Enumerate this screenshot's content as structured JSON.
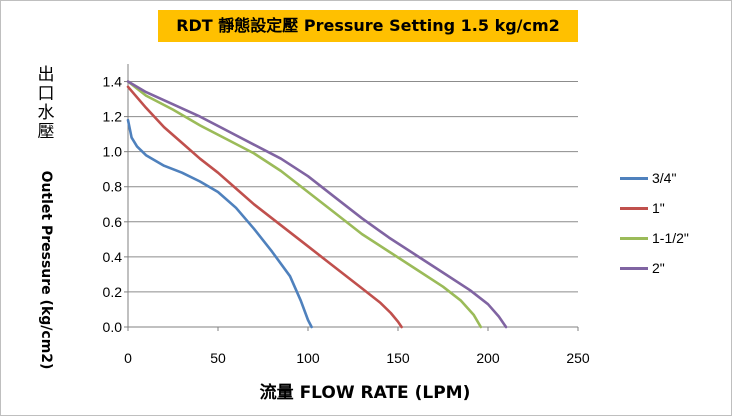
{
  "chart_data": {
    "type": "line",
    "title": "RDT  靜態設定壓  Pressure Setting 1.5 kg/cm2",
    "xlabel": "流量 FLOW RATE (LPM)",
    "ylabel_cn": "出口水壓",
    "ylabel_en": "Outlet  Pressure  (kg/cm2)",
    "xlim": [
      0,
      250
    ],
    "ylim": [
      0,
      1.5
    ],
    "xticks": [
      "0",
      "50",
      "100",
      "150",
      "200",
      "250"
    ],
    "yticks": [
      "0.0",
      "0.2",
      "0.4",
      "0.6",
      "0.8",
      "1.0",
      "1.2",
      "1.4"
    ],
    "grid": "horizontal",
    "legend_position": "right",
    "series": [
      {
        "name": "3/4\"",
        "color": "#4f81bd",
        "points": [
          [
            0,
            1.18
          ],
          [
            2,
            1.08
          ],
          [
            5,
            1.03
          ],
          [
            10,
            0.98
          ],
          [
            20,
            0.92
          ],
          [
            30,
            0.88
          ],
          [
            40,
            0.83
          ],
          [
            50,
            0.77
          ],
          [
            60,
            0.68
          ],
          [
            70,
            0.56
          ],
          [
            80,
            0.43
          ],
          [
            90,
            0.29
          ],
          [
            96,
            0.15
          ],
          [
            100,
            0.04
          ],
          [
            102,
            0.0
          ]
        ]
      },
      {
        "name": "1\"",
        "color": "#c0504d",
        "points": [
          [
            0,
            1.37
          ],
          [
            10,
            1.25
          ],
          [
            20,
            1.14
          ],
          [
            30,
            1.05
          ],
          [
            40,
            0.96
          ],
          [
            50,
            0.88
          ],
          [
            60,
            0.79
          ],
          [
            70,
            0.7
          ],
          [
            80,
            0.62
          ],
          [
            90,
            0.54
          ],
          [
            100,
            0.46
          ],
          [
            110,
            0.38
          ],
          [
            120,
            0.3
          ],
          [
            130,
            0.22
          ],
          [
            140,
            0.14
          ],
          [
            146,
            0.08
          ],
          [
            150,
            0.03
          ],
          [
            152,
            0.0
          ]
        ]
      },
      {
        "name": "1-1/2\"",
        "color": "#9bbb59",
        "points": [
          [
            0,
            1.4
          ],
          [
            10,
            1.32
          ],
          [
            25,
            1.24
          ],
          [
            40,
            1.15
          ],
          [
            55,
            1.07
          ],
          [
            70,
            0.99
          ],
          [
            85,
            0.89
          ],
          [
            100,
            0.77
          ],
          [
            115,
            0.65
          ],
          [
            130,
            0.53
          ],
          [
            145,
            0.43
          ],
          [
            160,
            0.33
          ],
          [
            175,
            0.23
          ],
          [
            185,
            0.15
          ],
          [
            192,
            0.07
          ],
          [
            196,
            0.0
          ]
        ]
      },
      {
        "name": "2\"",
        "color": "#8064a2",
        "points": [
          [
            0,
            1.4
          ],
          [
            10,
            1.34
          ],
          [
            25,
            1.27
          ],
          [
            40,
            1.2
          ],
          [
            55,
            1.12
          ],
          [
            70,
            1.04
          ],
          [
            85,
            0.96
          ],
          [
            100,
            0.86
          ],
          [
            115,
            0.74
          ],
          [
            130,
            0.62
          ],
          [
            145,
            0.51
          ],
          [
            160,
            0.41
          ],
          [
            175,
            0.31
          ],
          [
            190,
            0.21
          ],
          [
            200,
            0.13
          ],
          [
            206,
            0.06
          ],
          [
            210,
            0.0
          ]
        ]
      }
    ]
  }
}
